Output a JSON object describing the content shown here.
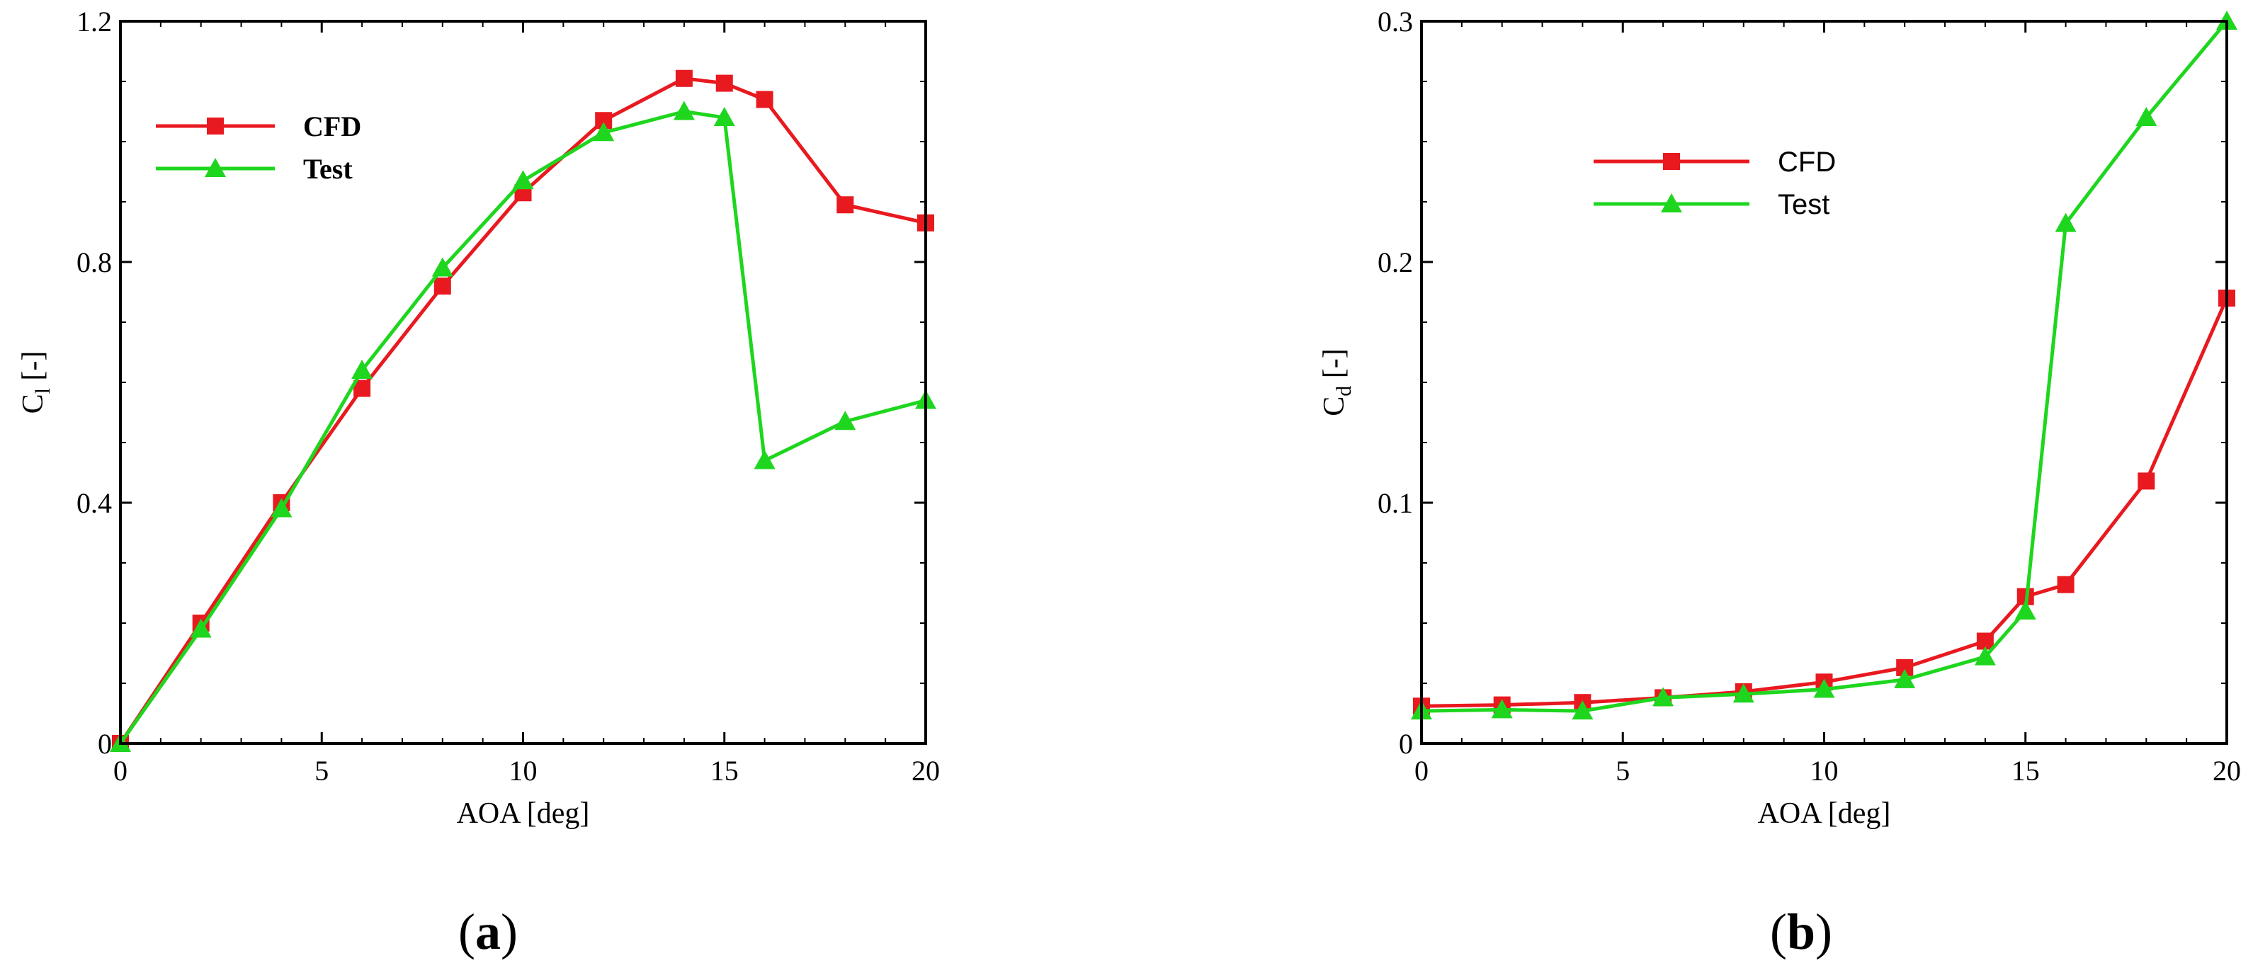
{
  "chart_data": [
    {
      "type": "line",
      "panel_label": "a",
      "xlabel": "AOA [deg]",
      "ylabel_main": "C",
      "ylabel_sub": "l",
      "ylabel_rest": " [-]",
      "xlim": [
        0,
        20
      ],
      "ylim": [
        0,
        1.2
      ],
      "xticks": [
        "0",
        "5",
        "10",
        "15",
        "20"
      ],
      "yticks": [
        "0",
        "0.4",
        "0.8",
        "1.2"
      ],
      "grid": false,
      "legend_placement": "top-left",
      "series": [
        {
          "name": "CFD",
          "color": "#e8191f",
          "marker": "square",
          "x": [
            0,
            2,
            4,
            6,
            8,
            10,
            12,
            14,
            15,
            16,
            18,
            20
          ],
          "y": [
            0.0,
            0.2,
            0.4,
            0.59,
            0.76,
            0.915,
            1.035,
            1.105,
            1.097,
            1.07,
            0.895,
            0.865
          ]
        },
        {
          "name": "Test",
          "color": "#1ed61e",
          "marker": "triangle",
          "x": [
            0,
            2,
            4,
            6,
            8,
            10,
            12,
            14,
            15,
            16,
            18,
            20
          ],
          "y": [
            0.0,
            0.19,
            0.39,
            0.62,
            0.79,
            0.935,
            1.015,
            1.05,
            1.04,
            0.47,
            0.535,
            0.57
          ]
        }
      ]
    },
    {
      "type": "line",
      "panel_label": "b",
      "xlabel": "AOA [deg]",
      "ylabel_main": "C",
      "ylabel_sub": "d",
      "ylabel_rest": " [-]",
      "xlim": [
        0,
        20
      ],
      "ylim": [
        0,
        0.3
      ],
      "xticks": [
        "0",
        "5",
        "10",
        "15",
        "20"
      ],
      "yticks": [
        "0",
        "0.1",
        "0.2",
        "0.3"
      ],
      "grid": false,
      "legend_placement": "top-left",
      "series": [
        {
          "name": "CFD",
          "color": "#e8191f",
          "marker": "square",
          "x": [
            0,
            2,
            4,
            6,
            8,
            10,
            12,
            14,
            15,
            16,
            18,
            20
          ],
          "y": [
            0.0155,
            0.016,
            0.017,
            0.019,
            0.0215,
            0.0255,
            0.0315,
            0.0425,
            0.061,
            0.066,
            0.109,
            0.185
          ]
        },
        {
          "name": "Test",
          "color": "#1ed61e",
          "marker": "triangle",
          "x": [
            0,
            2,
            4,
            6,
            8,
            10,
            12,
            14,
            15,
            16,
            18,
            20
          ],
          "y": [
            0.0135,
            0.014,
            0.0135,
            0.019,
            0.0205,
            0.0225,
            0.0265,
            0.036,
            0.055,
            0.216,
            0.26,
            0.3
          ]
        }
      ]
    }
  ]
}
